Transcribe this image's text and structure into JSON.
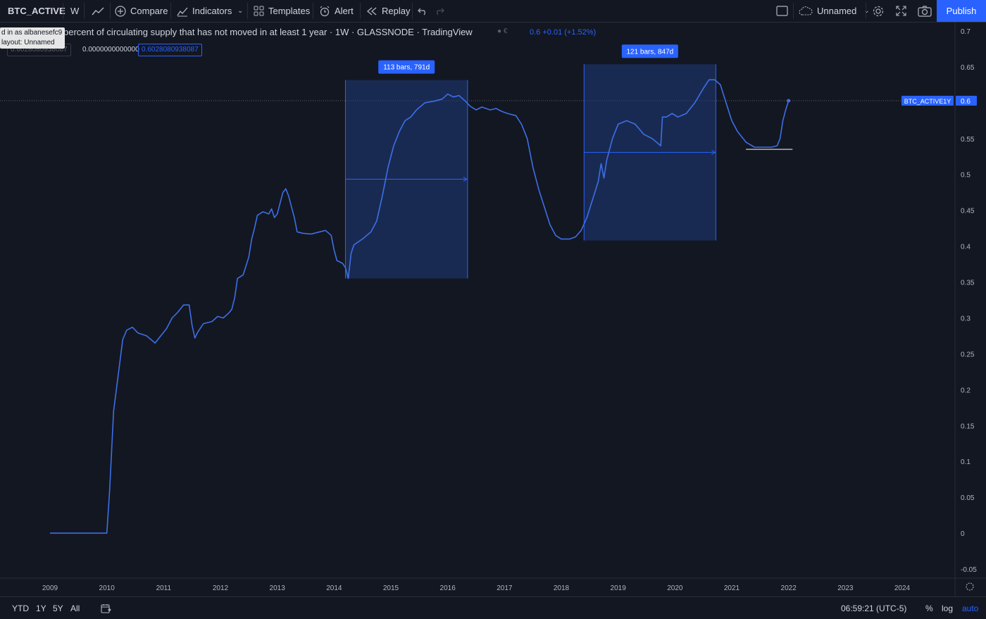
{
  "toolbar": {
    "symbol": "BTC_ACTIVE",
    "interval": "W",
    "compare": "Compare",
    "indicators": "Indicators",
    "templates": "Templates",
    "alert": "Alert",
    "replay": "Replay",
    "layout_name": "Unnamed",
    "publish": "Publish"
  },
  "tooltip": {
    "line1": "d in as albanesefc9",
    "line2": "layout: Unnamed"
  },
  "legend": {
    "title": "percent of circulating supply that has not moved in at least 1 year · 1W · GLASSNODE · TradingView",
    "value": "0.6 +0.01 (+1.52%)",
    "box1": "0.6028080938087",
    "box2": "0.0000000000000",
    "box3": "0.6028080938087"
  },
  "price_tag": {
    "label": "BTC_ACTIVE1Y",
    "value": "0.6"
  },
  "bottom": {
    "ranges": [
      "YTD",
      "1Y",
      "5Y",
      "All"
    ],
    "time": "06:59:21 (UTC-5)",
    "pct": "%",
    "log": "log",
    "auto": "auto"
  },
  "colors": {
    "background": "#131722",
    "line": "#3d6fe6",
    "range_fill": "#1f3a7a",
    "accent": "#2962ff"
  },
  "chart_data": {
    "type": "line",
    "series_label": "BTC_ACTIVE1Y",
    "ylim": [
      -0.05,
      0.7
    ],
    "yticks": [
      0.7,
      0.65,
      0.6,
      0.55,
      0.5,
      0.45,
      0.4,
      0.35,
      0.3,
      0.25,
      0.2,
      0.15,
      0.1,
      0.05,
      0,
      -0.05
    ],
    "xticks": [
      "2009",
      "2010",
      "2011",
      "2012",
      "2013",
      "2014",
      "2015",
      "2016",
      "2017",
      "2018",
      "2019",
      "2020",
      "2021",
      "2022",
      "2023",
      "2024"
    ],
    "xlim": [
      2009.0,
      2024.0
    ],
    "points": [
      [
        2009.0,
        0.0
      ],
      [
        2009.95,
        0.0
      ],
      [
        2010.0,
        0.0
      ],
      [
        2010.05,
        0.06
      ],
      [
        2010.12,
        0.17
      ],
      [
        2010.2,
        0.22
      ],
      [
        2010.28,
        0.27
      ],
      [
        2010.35,
        0.283
      ],
      [
        2010.45,
        0.287
      ],
      [
        2010.55,
        0.279
      ],
      [
        2010.7,
        0.275
      ],
      [
        2010.85,
        0.265
      ],
      [
        2010.95,
        0.275
      ],
      [
        2011.05,
        0.285
      ],
      [
        2011.15,
        0.3
      ],
      [
        2011.25,
        0.308
      ],
      [
        2011.35,
        0.318
      ],
      [
        2011.45,
        0.318
      ],
      [
        2011.5,
        0.29
      ],
      [
        2011.55,
        0.272
      ],
      [
        2011.6,
        0.28
      ],
      [
        2011.7,
        0.292
      ],
      [
        2011.85,
        0.295
      ],
      [
        2011.95,
        0.302
      ],
      [
        2012.05,
        0.3
      ],
      [
        2012.15,
        0.307
      ],
      [
        2012.2,
        0.312
      ],
      [
        2012.25,
        0.328
      ],
      [
        2012.3,
        0.355
      ],
      [
        2012.4,
        0.36
      ],
      [
        2012.5,
        0.385
      ],
      [
        2012.55,
        0.41
      ],
      [
        2012.6,
        0.425
      ],
      [
        2012.65,
        0.443
      ],
      [
        2012.75,
        0.448
      ],
      [
        2012.85,
        0.445
      ],
      [
        2012.9,
        0.452
      ],
      [
        2012.95,
        0.44
      ],
      [
        2013.0,
        0.445
      ],
      [
        2013.05,
        0.46
      ],
      [
        2013.1,
        0.475
      ],
      [
        2013.15,
        0.48
      ],
      [
        2013.2,
        0.47
      ],
      [
        2013.25,
        0.455
      ],
      [
        2013.3,
        0.44
      ],
      [
        2013.35,
        0.42
      ],
      [
        2013.45,
        0.418
      ],
      [
        2013.6,
        0.417
      ],
      [
        2013.75,
        0.42
      ],
      [
        2013.85,
        0.422
      ],
      [
        2013.95,
        0.415
      ],
      [
        2014.0,
        0.395
      ],
      [
        2014.05,
        0.38
      ],
      [
        2014.15,
        0.376
      ],
      [
        2014.2,
        0.37
      ],
      [
        2014.25,
        0.355
      ],
      [
        2014.3,
        0.39
      ],
      [
        2014.35,
        0.402
      ],
      [
        2014.5,
        0.41
      ],
      [
        2014.65,
        0.42
      ],
      [
        2014.75,
        0.435
      ],
      [
        2014.85,
        0.47
      ],
      [
        2014.95,
        0.51
      ],
      [
        2015.05,
        0.54
      ],
      [
        2015.15,
        0.56
      ],
      [
        2015.25,
        0.575
      ],
      [
        2015.35,
        0.58
      ],
      [
        2015.45,
        0.59
      ],
      [
        2015.6,
        0.6
      ],
      [
        2015.75,
        0.602
      ],
      [
        2015.9,
        0.605
      ],
      [
        2016.0,
        0.612
      ],
      [
        2016.1,
        0.608
      ],
      [
        2016.2,
        0.61
      ],
      [
        2016.3,
        0.603
      ],
      [
        2016.4,
        0.595
      ],
      [
        2016.5,
        0.59
      ],
      [
        2016.6,
        0.594
      ],
      [
        2016.75,
        0.59
      ],
      [
        2016.85,
        0.592
      ],
      [
        2016.95,
        0.588
      ],
      [
        2017.05,
        0.585
      ],
      [
        2017.2,
        0.582
      ],
      [
        2017.3,
        0.57
      ],
      [
        2017.4,
        0.55
      ],
      [
        2017.5,
        0.51
      ],
      [
        2017.6,
        0.48
      ],
      [
        2017.7,
        0.455
      ],
      [
        2017.8,
        0.43
      ],
      [
        2017.9,
        0.415
      ],
      [
        2018.0,
        0.41
      ],
      [
        2018.15,
        0.41
      ],
      [
        2018.25,
        0.413
      ],
      [
        2018.35,
        0.422
      ],
      [
        2018.45,
        0.44
      ],
      [
        2018.55,
        0.465
      ],
      [
        2018.65,
        0.49
      ],
      [
        2018.7,
        0.515
      ],
      [
        2018.75,
        0.495
      ],
      [
        2018.8,
        0.52
      ],
      [
        2018.9,
        0.55
      ],
      [
        2019.0,
        0.57
      ],
      [
        2019.15,
        0.575
      ],
      [
        2019.3,
        0.57
      ],
      [
        2019.45,
        0.556
      ],
      [
        2019.6,
        0.55
      ],
      [
        2019.75,
        0.54
      ],
      [
        2019.78,
        0.58
      ],
      [
        2019.85,
        0.58
      ],
      [
        2019.95,
        0.585
      ],
      [
        2020.05,
        0.58
      ],
      [
        2020.2,
        0.585
      ],
      [
        2020.35,
        0.6
      ],
      [
        2020.5,
        0.62
      ],
      [
        2020.6,
        0.632
      ],
      [
        2020.7,
        0.632
      ],
      [
        2020.8,
        0.625
      ],
      [
        2020.9,
        0.6
      ],
      [
        2021.0,
        0.575
      ],
      [
        2021.1,
        0.56
      ],
      [
        2021.25,
        0.545
      ],
      [
        2021.4,
        0.538
      ],
      [
        2021.55,
        0.538
      ],
      [
        2021.7,
        0.538
      ],
      [
        2021.8,
        0.54
      ],
      [
        2021.85,
        0.55
      ],
      [
        2021.9,
        0.575
      ],
      [
        2021.95,
        0.59
      ],
      [
        2022.0,
        0.6028
      ]
    ],
    "ranges": [
      {
        "label": "113 bars, 791d",
        "from": 2014.2,
        "to": 2016.35,
        "low": 0.355,
        "high": 0.61
      },
      {
        "label": "121 bars, 847d",
        "from": 2018.4,
        "to": 2020.72,
        "low": 0.408,
        "high": 0.632
      }
    ],
    "hline": {
      "from": 2021.25,
      "to": 2022.07,
      "value": 0.535
    }
  }
}
